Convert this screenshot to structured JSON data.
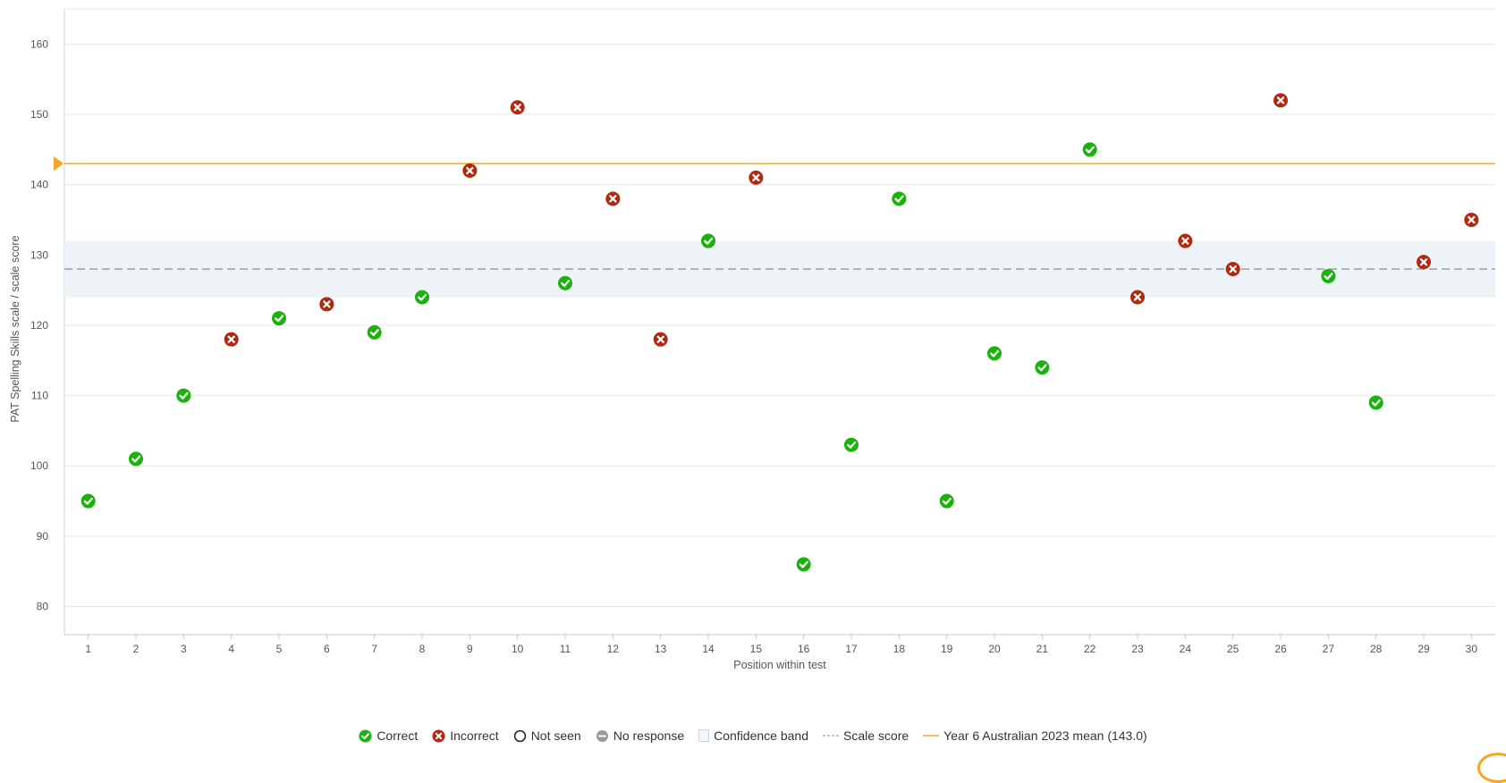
{
  "colors": {
    "correct": "#19b30b",
    "incorrect": "#b4280e",
    "mean_line": "#f5a623",
    "scale_score": "#aeb4ba",
    "confidence_band": "#eef3f7",
    "grid": "#e8e8e8"
  },
  "chart_data": {
    "type": "scatter",
    "xlabel": "Position within test",
    "ylabel": "PAT Spelling Skills scale / scale score",
    "ylim": [
      76,
      165
    ],
    "yticks": [
      80,
      90,
      100,
      110,
      120,
      130,
      140,
      150,
      160
    ],
    "categories": [
      "1",
      "2",
      "3",
      "4",
      "5",
      "6",
      "7",
      "8",
      "9",
      "10",
      "11",
      "12",
      "13",
      "14",
      "15",
      "16",
      "17",
      "18",
      "19",
      "20",
      "21",
      "22",
      "23",
      "24",
      "25",
      "26",
      "27",
      "28",
      "29",
      "30"
    ],
    "points": [
      {
        "position": 1,
        "value": 95,
        "result": "correct"
      },
      {
        "position": 2,
        "value": 101,
        "result": "correct"
      },
      {
        "position": 3,
        "value": 110,
        "result": "correct"
      },
      {
        "position": 4,
        "value": 118,
        "result": "incorrect"
      },
      {
        "position": 5,
        "value": 121,
        "result": "correct"
      },
      {
        "position": 6,
        "value": 123,
        "result": "incorrect"
      },
      {
        "position": 7,
        "value": 119,
        "result": "correct"
      },
      {
        "position": 8,
        "value": 124,
        "result": "correct"
      },
      {
        "position": 9,
        "value": 142,
        "result": "incorrect"
      },
      {
        "position": 10,
        "value": 151,
        "result": "incorrect"
      },
      {
        "position": 11,
        "value": 126,
        "result": "correct"
      },
      {
        "position": 12,
        "value": 138,
        "result": "incorrect"
      },
      {
        "position": 13,
        "value": 118,
        "result": "incorrect"
      },
      {
        "position": 14,
        "value": 132,
        "result": "correct"
      },
      {
        "position": 15,
        "value": 141,
        "result": "incorrect"
      },
      {
        "position": 16,
        "value": 86,
        "result": "correct"
      },
      {
        "position": 17,
        "value": 103,
        "result": "correct"
      },
      {
        "position": 18,
        "value": 138,
        "result": "correct"
      },
      {
        "position": 19,
        "value": 95,
        "result": "correct"
      },
      {
        "position": 20,
        "value": 116,
        "result": "correct"
      },
      {
        "position": 21,
        "value": 114,
        "result": "correct"
      },
      {
        "position": 22,
        "value": 145,
        "result": "correct"
      },
      {
        "position": 23,
        "value": 124,
        "result": "incorrect"
      },
      {
        "position": 24,
        "value": 132,
        "result": "incorrect"
      },
      {
        "position": 25,
        "value": 128,
        "result": "incorrect"
      },
      {
        "position": 26,
        "value": 152,
        "result": "incorrect"
      },
      {
        "position": 27,
        "value": 127,
        "result": "correct"
      },
      {
        "position": 28,
        "value": 109,
        "result": "correct"
      },
      {
        "position": 29,
        "value": 129,
        "result": "incorrect"
      },
      {
        "position": 30,
        "value": 135,
        "result": "incorrect"
      }
    ],
    "scale_score": 128,
    "confidence_band": [
      124,
      132
    ],
    "mean": 143.0,
    "legend": {
      "correct": "Correct",
      "incorrect": "Incorrect",
      "not_seen": "Not seen",
      "no_response": "No response",
      "confidence_band": "Confidence band",
      "scale_score": "Scale score",
      "mean": "Year 6 Australian 2023 mean (143.0)"
    }
  }
}
